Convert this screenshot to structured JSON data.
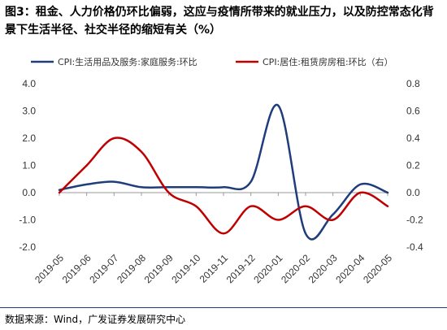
{
  "title": "图3：租金、人力价格仍环比偏弱，这应与疫情所带来的就业压力，以及防控常态化背景下生活半径、社交半径的缩短有关（%）",
  "source": "数据来源：Wind，广发证券发展研究中心",
  "colors": {
    "series_left": "#1f3d7a",
    "series_right": "#c00000",
    "axis": "#999999",
    "rule": "#1f3d7a"
  },
  "chart_data": {
    "type": "line",
    "x": [
      "2019-05",
      "2019-06",
      "2019-07",
      "2019-08",
      "2019-09",
      "2019-10",
      "2019-11",
      "2019-12",
      "2020-01",
      "2020-02",
      "2020-03",
      "2020-04",
      "2020-05"
    ],
    "series": [
      {
        "name": "CPI:生活用品及服务:家庭服务:环比",
        "axis": "left",
        "color": "#1f3d7a",
        "values": [
          0.1,
          0.3,
          0.4,
          0.2,
          0.2,
          0.2,
          0.2,
          0.4,
          3.2,
          -1.5,
          -0.8,
          0.3,
          0.0
        ]
      },
      {
        "name": "CPI:居住:租赁房房租:环比（右）",
        "axis": "right",
        "color": "#c00000",
        "values": [
          0.0,
          0.2,
          0.4,
          0.3,
          0.0,
          -0.1,
          -0.3,
          -0.1,
          -0.2,
          -0.1,
          -0.2,
          0.0,
          -0.1
        ]
      }
    ],
    "y_left": {
      "min": -2.0,
      "max": 4.0,
      "ticks": [
        4.0,
        3.0,
        2.0,
        1.0,
        0.0,
        -1.0,
        -2.0
      ]
    },
    "y_right": {
      "min": -0.4,
      "max": 0.8,
      "ticks": [
        0.8,
        0.6,
        0.4,
        0.2,
        0.0,
        -0.2,
        -0.4
      ]
    },
    "legend": "top",
    "grid": false
  }
}
